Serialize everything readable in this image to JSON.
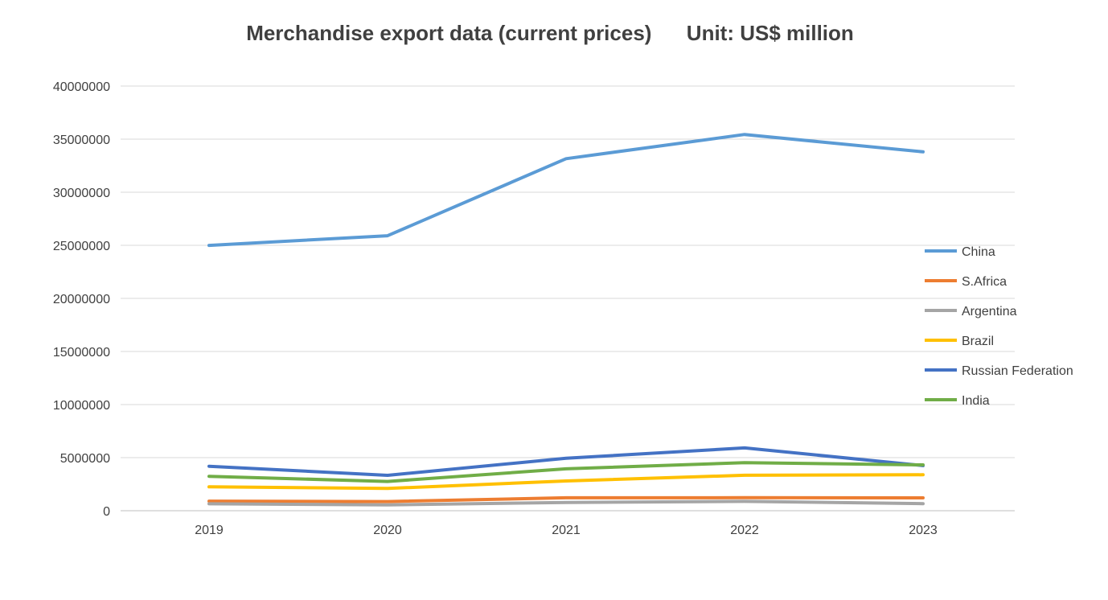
{
  "chart_data": {
    "type": "line",
    "title": "Merchandise export data (current prices)      Unit: US$ million",
    "xlabel": "",
    "ylabel": "",
    "categories": [
      "2019",
      "2020",
      "2021",
      "2022",
      "2023"
    ],
    "ylim": [
      0,
      40000000
    ],
    "yticks": [
      0,
      5000000,
      10000000,
      15000000,
      20000000,
      25000000,
      30000000,
      35000000,
      40000000
    ],
    "ytick_labels": [
      "0",
      "5000000",
      "10000000",
      "15000000",
      "20000000",
      "25000000",
      "30000000",
      "35000000",
      "40000000"
    ],
    "grid": true,
    "legend_position": "right",
    "series": [
      {
        "name": "China",
        "color": "#5B9BD5",
        "values": [
          24990000,
          25900000,
          33160000,
          35440000,
          33800000
        ]
      },
      {
        "name": "S.Africa",
        "color": "#ED7D31",
        "values": [
          900000,
          860000,
          1220000,
          1230000,
          1210000
        ]
      },
      {
        "name": "Argentina",
        "color": "#A5A5A5",
        "values": [
          650000,
          550000,
          780000,
          880000,
          670000
        ]
      },
      {
        "name": "Brazil",
        "color": "#FFC000",
        "values": [
          2250000,
          2100000,
          2800000,
          3340000,
          3390000
        ]
      },
      {
        "name": "Russian Federation",
        "color": "#4472C4",
        "values": [
          4190000,
          3330000,
          4940000,
          5920000,
          4250000
        ]
      },
      {
        "name": "India",
        "color": "#70AD47",
        "values": [
          3240000,
          2760000,
          3950000,
          4530000,
          4320000
        ]
      }
    ]
  }
}
